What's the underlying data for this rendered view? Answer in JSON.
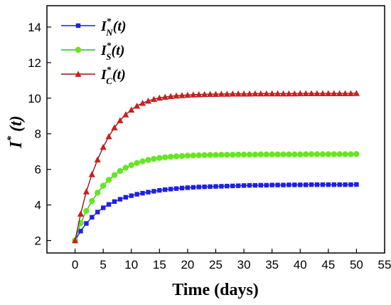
{
  "chart_data": {
    "type": "line",
    "xlabel": "Time (days)",
    "ylabel": {
      "base": "I",
      "sup": "*",
      "rest": " (t)"
    },
    "xlim": [
      -5,
      55
    ],
    "ylim": [
      1.3,
      15.2
    ],
    "xticks": [
      0,
      5,
      10,
      15,
      20,
      25,
      30,
      35,
      40,
      45,
      50,
      55
    ],
    "yticks": [
      2,
      4,
      6,
      8,
      10,
      12,
      14
    ],
    "grid": false,
    "legend_position": "top-left",
    "x": [
      0,
      1,
      2,
      3,
      4,
      5,
      6,
      7,
      8,
      9,
      10,
      11,
      12,
      13,
      14,
      15,
      16,
      17,
      18,
      19,
      20,
      21,
      22,
      23,
      24,
      25,
      26,
      27,
      28,
      29,
      30,
      31,
      32,
      33,
      34,
      35,
      36,
      37,
      38,
      39,
      40,
      41,
      42,
      43,
      44,
      45,
      46,
      47,
      48,
      49,
      50
    ],
    "series": [
      {
        "name": "IN*(t)",
        "legend": {
          "base": "I",
          "sup": "*",
          "sub": "N",
          "rest": "(t)"
        },
        "color": "#1f1fe6",
        "marker": "square",
        "values": [
          2.0,
          2.53,
          2.96,
          3.31,
          3.6,
          3.84,
          4.03,
          4.19,
          4.32,
          4.43,
          4.52,
          4.6,
          4.66,
          4.72,
          4.77,
          4.82,
          4.86,
          4.89,
          4.92,
          4.95,
          4.97,
          4.99,
          5.01,
          5.02,
          5.03,
          5.04,
          5.05,
          5.06,
          5.07,
          5.08,
          5.09,
          5.1,
          5.1,
          5.11,
          5.11,
          5.12,
          5.12,
          5.12,
          5.13,
          5.13,
          5.13,
          5.13,
          5.14,
          5.14,
          5.14,
          5.14,
          5.14,
          5.14,
          5.14,
          5.14,
          5.15
        ]
      },
      {
        "name": "IS*(t)",
        "legend": {
          "base": "I",
          "sup": "*",
          "sub": "S",
          "rest": "(t)"
        },
        "color": "#2db82d",
        "markerColor": "#66e620",
        "marker": "circle",
        "values": [
          2.0,
          2.98,
          3.66,
          4.22,
          4.69,
          5.08,
          5.41,
          5.68,
          5.91,
          6.09,
          6.24,
          6.36,
          6.45,
          6.53,
          6.59,
          6.64,
          6.68,
          6.71,
          6.73,
          6.75,
          6.77,
          6.78,
          6.79,
          6.8,
          6.81,
          6.81,
          6.82,
          6.82,
          6.82,
          6.83,
          6.83,
          6.83,
          6.83,
          6.84,
          6.84,
          6.84,
          6.84,
          6.84,
          6.84,
          6.84,
          6.84,
          6.85,
          6.85,
          6.85,
          6.85,
          6.85,
          6.85,
          6.85,
          6.85,
          6.85,
          6.86
        ]
      },
      {
        "name": "IC*(t)",
        "legend": {
          "base": "I",
          "sup": "*",
          "sub": "C",
          "rest": "(t)"
        },
        "color": "#8b1a1a",
        "markerColor": "#c82020",
        "marker": "triangle",
        "values": [
          2.0,
          3.5,
          4.75,
          5.72,
          6.55,
          7.25,
          7.85,
          8.35,
          8.75,
          9.08,
          9.35,
          9.57,
          9.73,
          9.85,
          9.95,
          10.02,
          10.07,
          10.11,
          10.14,
          10.16,
          10.18,
          10.2,
          10.21,
          10.22,
          10.23,
          10.23,
          10.24,
          10.24,
          10.25,
          10.25,
          10.25,
          10.25,
          10.26,
          10.26,
          10.26,
          10.26,
          10.26,
          10.26,
          10.26,
          10.26,
          10.27,
          10.27,
          10.27,
          10.27,
          10.27,
          10.27,
          10.27,
          10.27,
          10.27,
          10.27,
          10.28
        ]
      }
    ]
  }
}
